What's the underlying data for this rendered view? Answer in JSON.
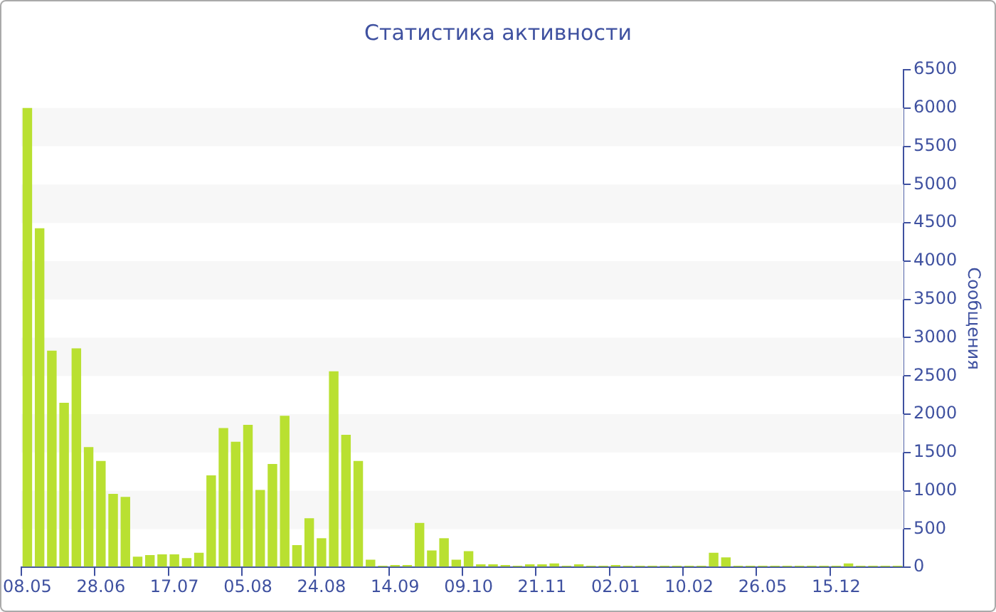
{
  "chart_data": {
    "type": "bar",
    "title": "Статистика активности",
    "ylabel": "Сообщения",
    "categories": [
      "08.05",
      null,
      null,
      null,
      null,
      null,
      "28.06",
      null,
      null,
      null,
      null,
      null,
      "17.07",
      null,
      null,
      null,
      null,
      null,
      "05.08",
      null,
      null,
      null,
      null,
      null,
      "24.08",
      null,
      null,
      null,
      null,
      null,
      "14.09",
      null,
      null,
      null,
      null,
      null,
      "09.10",
      null,
      null,
      null,
      null,
      null,
      "21.11",
      null,
      null,
      null,
      null,
      null,
      "02.01",
      null,
      null,
      null,
      null,
      null,
      "10.02",
      null,
      null,
      null,
      null,
      null,
      "26.05",
      null,
      null,
      null,
      null,
      null,
      "15.12",
      null,
      null,
      null,
      null,
      null
    ],
    "values": [
      6000,
      4430,
      2830,
      2150,
      2860,
      1570,
      1390,
      960,
      920,
      140,
      160,
      170,
      170,
      120,
      190,
      1200,
      1820,
      1640,
      1860,
      1010,
      1350,
      1980,
      290,
      640,
      380,
      2560,
      1730,
      1390,
      100,
      20,
      30,
      30,
      580,
      220,
      380,
      100,
      210,
      40,
      40,
      30,
      20,
      40,
      40,
      50,
      20,
      40,
      20,
      20,
      30,
      20,
      20,
      20,
      20,
      20,
      20,
      20,
      190,
      130,
      20,
      20,
      20,
      20,
      20,
      20,
      20,
      20,
      20,
      50,
      20,
      20,
      20,
      20
    ],
    "color": "#b9e031",
    "ylim": [
      0,
      6500
    ],
    "yticks": [
      0,
      500,
      1000,
      1500,
      2000,
      2500,
      3000,
      3500,
      4000,
      4500,
      5000,
      5500,
      6000,
      6500
    ],
    "bands": [
      {
        "axis": "y",
        "from": 500,
        "to": 1000,
        "color": "#f7f7f7"
      },
      {
        "axis": "y",
        "from": 1500,
        "to": 2000,
        "color": "#f7f7f7"
      },
      {
        "axis": "y",
        "from": 2500,
        "to": 3000,
        "color": "#f7f7f7"
      },
      {
        "axis": "y",
        "from": 3500,
        "to": 4000,
        "color": "#f7f7f7"
      },
      {
        "axis": "y",
        "from": 4500,
        "to": 5000,
        "color": "#f7f7f7"
      },
      {
        "axis": "y",
        "from": 5500,
        "to": 6000,
        "color": "#f7f7f7"
      }
    ],
    "legend": false
  }
}
